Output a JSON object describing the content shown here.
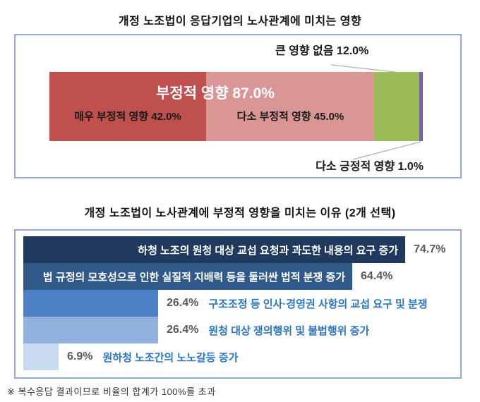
{
  "chart_data": [
    {
      "type": "bar",
      "variant": "horizontal-stacked",
      "title": "개정 노조법이 응답기업의 노사관계에 미치는 영향",
      "categories": [
        "매우 부정적 영향",
        "다소 부정적 영향",
        "큰 영향 없음",
        "다소 긍정적 영향"
      ],
      "values": [
        42.0,
        45.0,
        12.0,
        1.0
      ],
      "colors": [
        "#c0504d",
        "#d99694",
        "#9bbb59",
        "#7763a2"
      ],
      "xlim": [
        0,
        100
      ],
      "labels": {
        "group": "부정적 영향 87.0%",
        "seg1": "매우 부정적 영향 42.0%",
        "seg2": "다소 부정적 영향 45.0%",
        "seg3": "큰 영향 없음 12.0%",
        "seg4": "다소 긍정적 영향 1.0%"
      }
    },
    {
      "type": "bar",
      "variant": "horizontal",
      "title": "개정 노조법이 노사관계에 부정적 영향을 미치는 이유 (2개 선택)",
      "xlim": [
        0,
        100
      ],
      "bars": [
        {
          "label": "하청 노조의 원청 대상 교섭 요청과 과도한 내용의 요구 증가",
          "value": 74.7,
          "display": "74.7%",
          "color": "#1f3a5e",
          "label_inside": true
        },
        {
          "label": "법 규정의 모호성으로 인한 실질적 지배력 등을 둘러싼 법적 분쟁 증가",
          "value": 64.4,
          "display": "64.4%",
          "color": "#30598a",
          "label_inside": true
        },
        {
          "label": "구조조정 등 인사·경영권 사항의 교섭 요구 및 분쟁",
          "value": 26.4,
          "display": "26.4%",
          "color": "#4b80c4",
          "label_inside": false
        },
        {
          "label": "원청 대상 쟁의행위 및 불법행위 증가",
          "value": 26.4,
          "display": "26.4%",
          "color": "#90b2dd",
          "label_inside": false
        },
        {
          "label": "원하청 노조간의 노노갈등 증가",
          "value": 6.9,
          "display": "6.9%",
          "color": "#c8daef",
          "label_inside": false
        }
      ]
    }
  ],
  "footnote": "※ 복수응답 결과이므로 비율의 합계가 100%를 초과",
  "colors": {
    "panel_border": "#92a8d5",
    "leader_line": "#b3b3b3",
    "value_text": "#595959",
    "outside_label_text": "#2b76c4"
  }
}
